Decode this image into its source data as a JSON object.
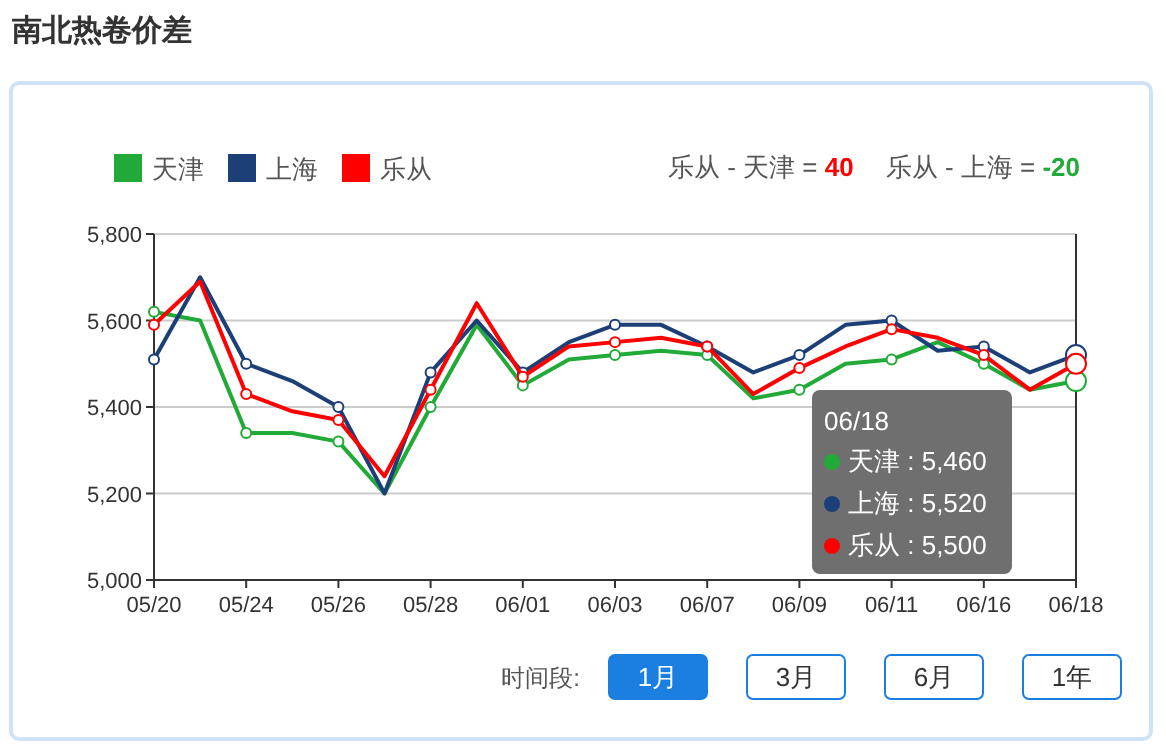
{
  "chart_data": {
    "type": "line",
    "title": "南北热卷价差",
    "categories": [
      "05/20",
      null,
      "05/24",
      null,
      "05/26",
      null,
      "05/28",
      null,
      "06/01",
      null,
      "06/03",
      null,
      "06/07",
      null,
      "06/09",
      null,
      "06/11",
      null,
      "06/16",
      null,
      "06/18"
    ],
    "series": [
      {
        "name": "天津",
        "color": "#22aa38",
        "values": [
          5620,
          5600,
          5340,
          5340,
          5320,
          5200,
          5400,
          5590,
          5450,
          5510,
          5520,
          5530,
          5520,
          5420,
          5440,
          5500,
          5510,
          5550,
          5500,
          5440,
          5460
        ]
      },
      {
        "name": "上海",
        "color": "#1d3f77",
        "values": [
          5510,
          5700,
          5500,
          5460,
          5400,
          5200,
          5480,
          5600,
          5480,
          5550,
          5590,
          5590,
          5540,
          5480,
          5520,
          5590,
          5600,
          5530,
          5540,
          5480,
          5520
        ]
      },
      {
        "name": "乐从",
        "color": "#ff0000",
        "values": [
          5590,
          5690,
          5430,
          5390,
          5370,
          5240,
          5440,
          5640,
          5470,
          5540,
          5550,
          5560,
          5540,
          5430,
          5490,
          5540,
          5580,
          5560,
          5520,
          5440,
          5500
        ]
      }
    ],
    "ylim": [
      5000,
      5800
    ],
    "yticks": [
      {
        "value": 5000,
        "label": "5,000"
      },
      {
        "value": 5200,
        "label": "5,200"
      },
      {
        "value": 5400,
        "label": "5,400"
      },
      {
        "value": 5600,
        "label": "5,600"
      },
      {
        "value": 5800,
        "label": "5,800"
      }
    ],
    "grid": "y",
    "legend": "top left",
    "marker": "circle",
    "annotations": [
      "乐从 - 天津 = 40",
      "乐从 - 上海 = -20",
      "时间段:",
      "1月",
      "3月",
      "6月",
      "1年",
      "06/18",
      "天津 : 5,460",
      "上海 : 5,520",
      "乐从 : 5,500"
    ]
  }
}
